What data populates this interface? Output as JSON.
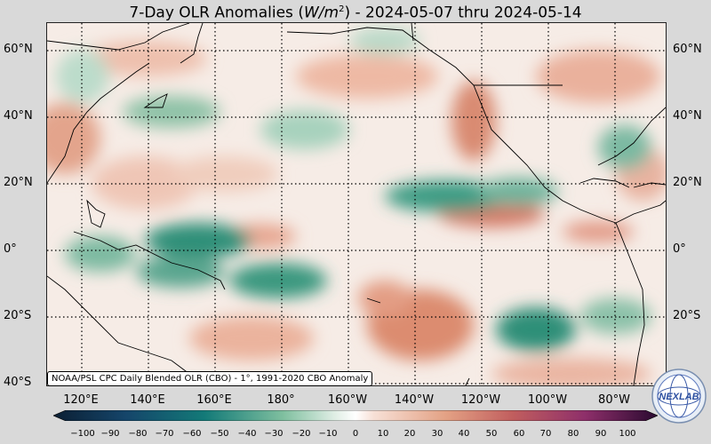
{
  "title": {
    "prefix": "7-Day OLR Anomalies (",
    "unit_var": "W/m",
    "unit_exp": "2",
    "suffix": ") - 2024-05-07 thru 2024-05-14"
  },
  "lat_labels": [
    "60°N",
    "40°N",
    "20°N",
    "0°",
    "20°S",
    "40°S"
  ],
  "lon_labels": [
    "120°E",
    "140°E",
    "160°E",
    "180°",
    "160°W",
    "140°W",
    "120°W",
    "100°W",
    "80°W"
  ],
  "attribution": "NOAA/PSL CPC Daily Blended OLR (CBO) - 1°, 1991-2020 CBO Anomaly",
  "colorbar_ticks": [
    "−100",
    "−90",
    "−80",
    "−70",
    "−60",
    "−50",
    "−40",
    "−30",
    "−20",
    "−10",
    "0",
    "10",
    "20",
    "30",
    "40",
    "50",
    "60",
    "70",
    "80",
    "90",
    "100"
  ],
  "logo_text": "NEXLAB",
  "colors": {
    "negative": "#2f8f78",
    "positive": "#d97a5e",
    "neutral": "#f7f2ee",
    "land": "#000000"
  }
}
